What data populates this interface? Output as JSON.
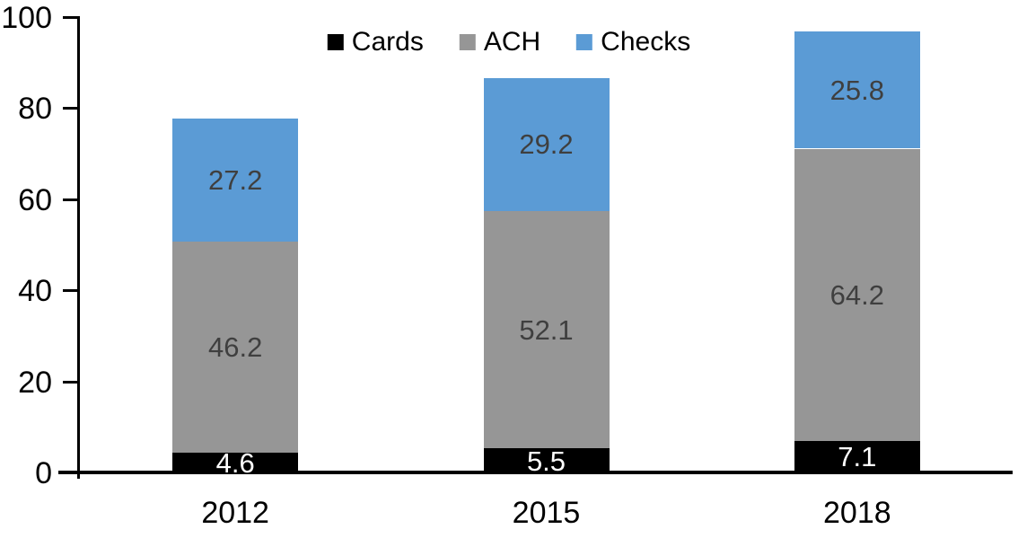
{
  "chart_data": {
    "type": "bar",
    "stacked": true,
    "title": "",
    "categories": [
      "2012",
      "2015",
      "2018"
    ],
    "series": [
      {
        "name": "Cards",
        "color": "#000000",
        "label_color": "#FFFFFF",
        "values": [
          4.6,
          5.5,
          7.1
        ]
      },
      {
        "name": "ACH",
        "color": "#969696",
        "label_color": "#3F3F3F",
        "values": [
          46.2,
          52.1,
          64.2
        ]
      },
      {
        "name": "Checks",
        "color": "#5B9BD5",
        "label_color": "#3F3F3F",
        "values": [
          27.2,
          29.2,
          25.8
        ]
      }
    ],
    "totals": [
      78.0,
      86.8,
      97.1
    ],
    "data_labels_visible": true,
    "xlabel": "",
    "ylabel": "",
    "y_axis": {
      "min": 0,
      "max": 100,
      "ticks": [
        0,
        20,
        40,
        60,
        80,
        100
      ]
    },
    "legend": {
      "position": "top-center",
      "entries": [
        "Cards",
        "ACH",
        "Checks"
      ]
    },
    "grid": false,
    "axis_color": "#000000",
    "background_color": "#FFFFFF"
  }
}
